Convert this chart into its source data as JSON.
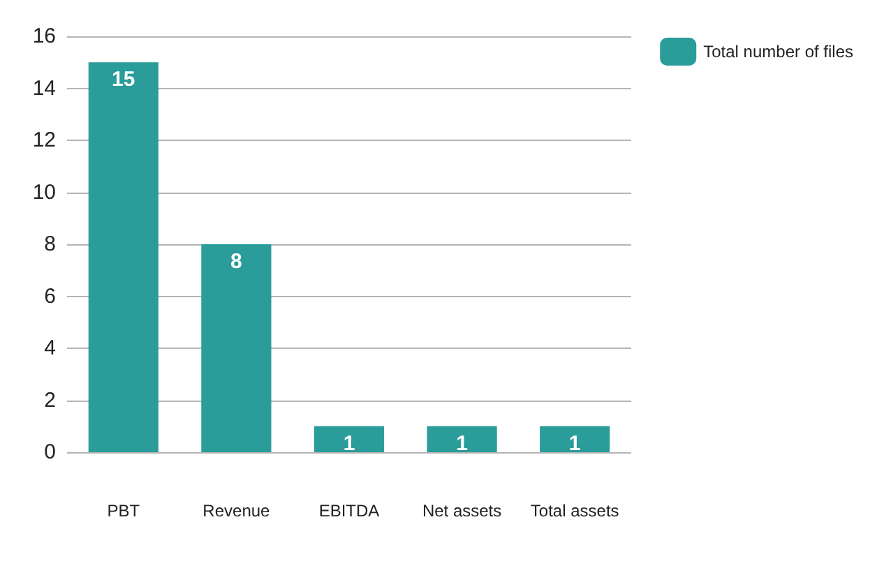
{
  "chart_data": {
    "type": "bar",
    "categories": [
      "PBT",
      "Revenue",
      "EBITDA",
      "Net assets",
      "Total assets"
    ],
    "series": [
      {
        "name": "Total number of files",
        "color": "#2a9c99",
        "values": [
          15,
          8,
          1,
          1,
          1
        ]
      }
    ],
    "ylim": [
      0,
      16
    ],
    "yticks": [
      0,
      2,
      4,
      6,
      8,
      10,
      12,
      14,
      16
    ],
    "grid": "y",
    "legend": "top right",
    "data_labels": true
  }
}
